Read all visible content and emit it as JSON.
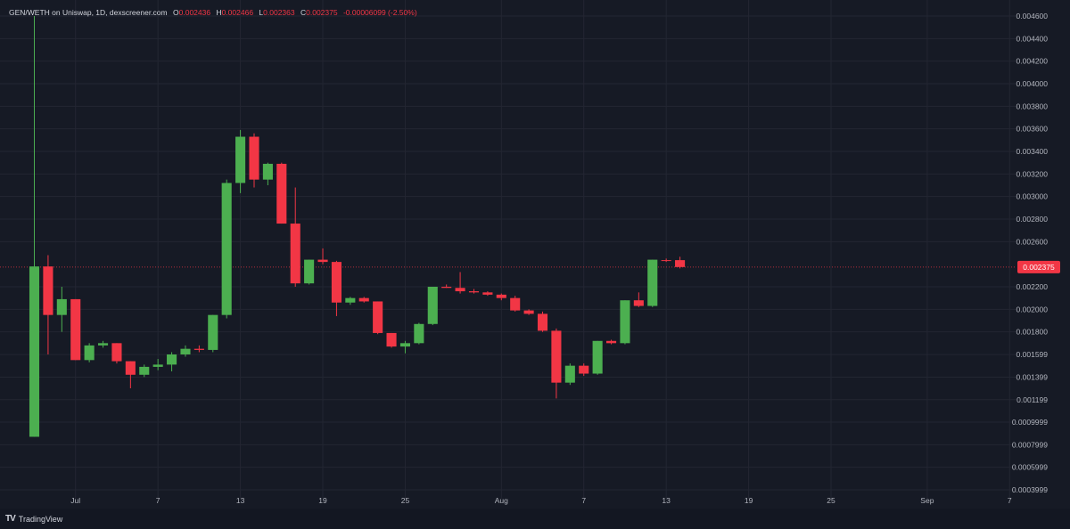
{
  "legend": {
    "symbol": "GEN/WETH on Uniswap, 1D, dexscreener.com",
    "open_label": "O",
    "open": "0.002436",
    "high_label": "H",
    "high": "0.002466",
    "low_label": "L",
    "low": "0.002363",
    "close_label": "C",
    "close": "0.002375",
    "change": "-0.00006099 (-2.50%)"
  },
  "branding": {
    "mark": "TV",
    "name": "TradingView"
  },
  "colors": {
    "background": "#161a25",
    "grid": "#232632",
    "up": "#4caf50",
    "down": "#f23645",
    "axis_text": "#b2b5be",
    "last_price_line": "#f23645"
  },
  "chart_data": {
    "type": "candlestick",
    "title": "GEN/WETH on Uniswap, 1D, dexscreener.com",
    "x_axis": {
      "start_date": "2024-06-26",
      "end_date": "2024-09-08",
      "tick_labels": [
        {
          "date": "2024-07-01",
          "label": "Jul"
        },
        {
          "date": "2024-07-07",
          "label": "7"
        },
        {
          "date": "2024-07-13",
          "label": "13"
        },
        {
          "date": "2024-07-19",
          "label": "19"
        },
        {
          "date": "2024-07-25",
          "label": "25"
        },
        {
          "date": "2024-08-01",
          "label": "Aug"
        },
        {
          "date": "2024-08-07",
          "label": "7"
        },
        {
          "date": "2024-08-13",
          "label": "13"
        },
        {
          "date": "2024-08-19",
          "label": "19"
        },
        {
          "date": "2024-08-25",
          "label": "25"
        },
        {
          "date": "2024-09-01",
          "label": "Sep"
        },
        {
          "date": "2024-09-07",
          "label": "7"
        }
      ]
    },
    "y_axis": {
      "range": [
        0.0003999,
        0.0046
      ],
      "tick_labels": [
        "0.004600",
        "0.004400",
        "0.004200",
        "0.004000",
        "0.003800",
        "0.003600",
        "0.003400",
        "0.003200",
        "0.003000",
        "0.002800",
        "0.002600",
        "0.002200",
        "0.002000",
        "0.001800",
        "0.001599",
        "0.001399",
        "0.001199",
        "0.0009999",
        "0.0007999",
        "0.0005999",
        "0.0003999"
      ],
      "tick_values": [
        0.0046,
        0.0044,
        0.0042,
        0.004,
        0.0038,
        0.0036,
        0.0034,
        0.0032,
        0.003,
        0.0028,
        0.0026,
        0.0022,
        0.002,
        0.0018,
        0.001599,
        0.001399,
        0.001199,
        0.0009999,
        0.0007999,
        0.0005999,
        0.0003999
      ]
    },
    "last_price": {
      "value": 0.002375,
      "label": "0.002375"
    },
    "candles": [
      {
        "date": "2024-06-28",
        "open": 0.00087,
        "high": 0.0046,
        "low": 0.00087,
        "close": 0.00238
      },
      {
        "date": "2024-06-29",
        "open": 0.00238,
        "high": 0.00248,
        "low": 0.0016,
        "close": 0.00195
      },
      {
        "date": "2024-06-30",
        "open": 0.00195,
        "high": 0.0022,
        "low": 0.0018,
        "close": 0.00209
      },
      {
        "date": "2024-07-01",
        "open": 0.00209,
        "high": 0.00209,
        "low": 0.00155,
        "close": 0.00155
      },
      {
        "date": "2024-07-02",
        "open": 0.00155,
        "high": 0.0017,
        "low": 0.00153,
        "close": 0.00168
      },
      {
        "date": "2024-07-03",
        "open": 0.00168,
        "high": 0.00172,
        "low": 0.00166,
        "close": 0.0017
      },
      {
        "date": "2024-07-04",
        "open": 0.0017,
        "high": 0.0017,
        "low": 0.00152,
        "close": 0.00154
      },
      {
        "date": "2024-07-05",
        "open": 0.00154,
        "high": 0.00154,
        "low": 0.0013,
        "close": 0.00142
      },
      {
        "date": "2024-07-06",
        "open": 0.00142,
        "high": 0.00151,
        "low": 0.0014,
        "close": 0.00149
      },
      {
        "date": "2024-07-07",
        "open": 0.00149,
        "high": 0.00156,
        "low": 0.00146,
        "close": 0.00151
      },
      {
        "date": "2024-07-08",
        "open": 0.00151,
        "high": 0.00162,
        "low": 0.00145,
        "close": 0.0016
      },
      {
        "date": "2024-07-09",
        "open": 0.0016,
        "high": 0.00168,
        "low": 0.00158,
        "close": 0.00165
      },
      {
        "date": "2024-07-10",
        "open": 0.00165,
        "high": 0.00168,
        "low": 0.00162,
        "close": 0.00164
      },
      {
        "date": "2024-07-11",
        "open": 0.00164,
        "high": 0.00195,
        "low": 0.00162,
        "close": 0.00195
      },
      {
        "date": "2024-07-12",
        "open": 0.00195,
        "high": 0.00315,
        "low": 0.00192,
        "close": 0.00312
      },
      {
        "date": "2024-07-13",
        "open": 0.00312,
        "high": 0.00359,
        "low": 0.00303,
        "close": 0.00353
      },
      {
        "date": "2024-07-14",
        "open": 0.00353,
        "high": 0.00356,
        "low": 0.00308,
        "close": 0.00315
      },
      {
        "date": "2024-07-15",
        "open": 0.00315,
        "high": 0.0033,
        "low": 0.0031,
        "close": 0.00329
      },
      {
        "date": "2024-07-16",
        "open": 0.00329,
        "high": 0.0033,
        "low": 0.00276,
        "close": 0.00276
      },
      {
        "date": "2024-07-17",
        "open": 0.00276,
        "high": 0.00308,
        "low": 0.0022,
        "close": 0.00223
      },
      {
        "date": "2024-07-18",
        "open": 0.00223,
        "high": 0.00244,
        "low": 0.00222,
        "close": 0.00244
      },
      {
        "date": "2024-07-19",
        "open": 0.00244,
        "high": 0.00254,
        "low": 0.0024,
        "close": 0.00242
      },
      {
        "date": "2024-07-20",
        "open": 0.00242,
        "high": 0.00243,
        "low": 0.00194,
        "close": 0.00206
      },
      {
        "date": "2024-07-21",
        "open": 0.00206,
        "high": 0.00211,
        "low": 0.00204,
        "close": 0.0021
      },
      {
        "date": "2024-07-22",
        "open": 0.0021,
        "high": 0.00211,
        "low": 0.00206,
        "close": 0.00207
      },
      {
        "date": "2024-07-23",
        "open": 0.00207,
        "high": 0.00207,
        "low": 0.00178,
        "close": 0.00179
      },
      {
        "date": "2024-07-24",
        "open": 0.00179,
        "high": 0.00179,
        "low": 0.00166,
        "close": 0.00167
      },
      {
        "date": "2024-07-25",
        "open": 0.00167,
        "high": 0.00172,
        "low": 0.00161,
        "close": 0.0017
      },
      {
        "date": "2024-07-26",
        "open": 0.0017,
        "high": 0.00188,
        "low": 0.00169,
        "close": 0.00187
      },
      {
        "date": "2024-07-27",
        "open": 0.00187,
        "high": 0.0022,
        "low": 0.00186,
        "close": 0.0022
      },
      {
        "date": "2024-07-28",
        "open": 0.0022,
        "high": 0.00222,
        "low": 0.00219,
        "close": 0.00219
      },
      {
        "date": "2024-07-29",
        "open": 0.00219,
        "high": 0.00233,
        "low": 0.00214,
        "close": 0.00216
      },
      {
        "date": "2024-07-30",
        "open": 0.00216,
        "high": 0.00218,
        "low": 0.00214,
        "close": 0.00215
      },
      {
        "date": "2024-07-31",
        "open": 0.00215,
        "high": 0.00216,
        "low": 0.00212,
        "close": 0.00213
      },
      {
        "date": "2024-08-01",
        "open": 0.00213,
        "high": 0.00214,
        "low": 0.00208,
        "close": 0.0021
      },
      {
        "date": "2024-08-02",
        "open": 0.0021,
        "high": 0.00212,
        "low": 0.00198,
        "close": 0.00199
      },
      {
        "date": "2024-08-03",
        "open": 0.00199,
        "high": 0.002,
        "low": 0.00195,
        "close": 0.00196
      },
      {
        "date": "2024-08-04",
        "open": 0.00196,
        "high": 0.00198,
        "low": 0.0018,
        "close": 0.00181
      },
      {
        "date": "2024-08-05",
        "open": 0.00181,
        "high": 0.00183,
        "low": 0.00121,
        "close": 0.00135
      },
      {
        "date": "2024-08-06",
        "open": 0.00135,
        "high": 0.00152,
        "low": 0.00133,
        "close": 0.0015
      },
      {
        "date": "2024-08-07",
        "open": 0.0015,
        "high": 0.00152,
        "low": 0.00141,
        "close": 0.00143
      },
      {
        "date": "2024-08-08",
        "open": 0.00143,
        "high": 0.00172,
        "low": 0.00142,
        "close": 0.00172
      },
      {
        "date": "2024-08-09",
        "open": 0.00172,
        "high": 0.00173,
        "low": 0.00169,
        "close": 0.0017
      },
      {
        "date": "2024-08-10",
        "open": 0.0017,
        "high": 0.00208,
        "low": 0.00169,
        "close": 0.00208
      },
      {
        "date": "2024-08-11",
        "open": 0.00208,
        "high": 0.00215,
        "low": 0.00202,
        "close": 0.00203
      },
      {
        "date": "2024-08-12",
        "open": 0.00203,
        "high": 0.00244,
        "low": 0.00202,
        "close": 0.00244
      },
      {
        "date": "2024-08-13",
        "open": 0.002436,
        "high": 0.00245,
        "low": 0.00242,
        "close": 0.00243
      },
      {
        "date": "2024-08-14",
        "open": 0.002436,
        "high": 0.002466,
        "low": 0.002363,
        "close": 0.002375
      }
    ]
  }
}
